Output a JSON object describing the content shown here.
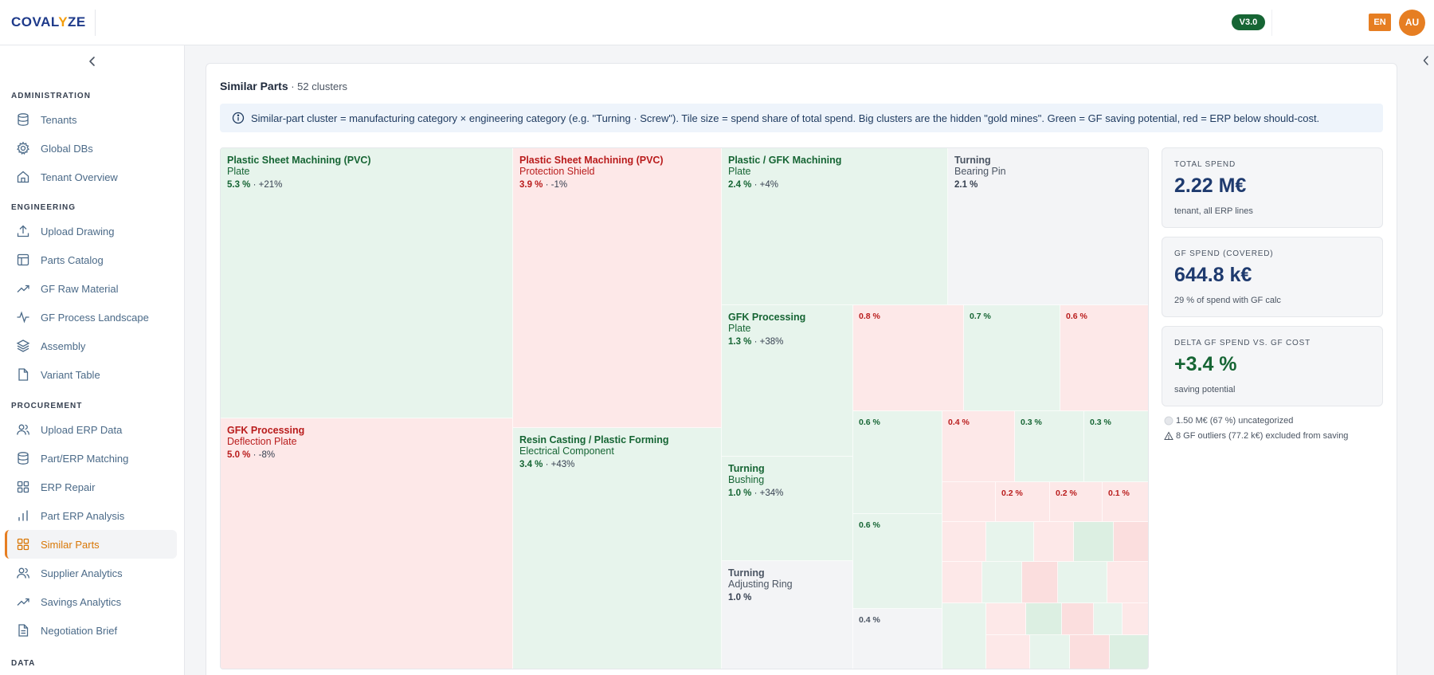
{
  "header": {
    "logo_pre": "COVAL",
    "logo_accent": "Y",
    "logo_post": "ZE",
    "version": "V3.0",
    "language": "EN",
    "avatar": "AU"
  },
  "sidebar": {
    "sections": [
      {
        "title": "ADMINISTRATION",
        "items": [
          {
            "label": "Tenants",
            "icon": "database-icon"
          },
          {
            "label": "Global DBs",
            "icon": "gear-icon"
          },
          {
            "label": "Tenant Overview",
            "icon": "home-icon"
          }
        ]
      },
      {
        "title": "ENGINEERING",
        "items": [
          {
            "label": "Upload Drawing",
            "icon": "upload-icon"
          },
          {
            "label": "Parts Catalog",
            "icon": "table-icon"
          },
          {
            "label": "GF Raw Material",
            "icon": "trend-icon"
          },
          {
            "label": "GF Process Landscape",
            "icon": "activity-icon"
          },
          {
            "label": "Assembly",
            "icon": "layers-icon"
          },
          {
            "label": "Variant Table",
            "icon": "file-icon"
          }
        ]
      },
      {
        "title": "PROCUREMENT",
        "items": [
          {
            "label": "Upload ERP Data",
            "icon": "users-icon"
          },
          {
            "label": "Part/ERP Matching",
            "icon": "database-icon"
          },
          {
            "label": "ERP Repair",
            "icon": "grid-icon"
          },
          {
            "label": "Part ERP Analysis",
            "icon": "bar-chart-icon"
          },
          {
            "label": "Similar Parts",
            "icon": "grid-icon"
          },
          {
            "label": "Supplier Analytics",
            "icon": "users-icon"
          },
          {
            "label": "Savings Analytics",
            "icon": "trend-icon"
          },
          {
            "label": "Negotiation Brief",
            "icon": "file-text-icon"
          }
        ]
      },
      {
        "title": "DATA",
        "items": []
      }
    ]
  },
  "main": {
    "title": "Similar Parts",
    "subtitle": " · 52 clusters",
    "info": "Similar-part cluster = manufacturing category × engineering category (e.g. \"Turning · Screw\"). Tile size = spend share of total spend. Big clusters are the hidden \"gold mines\". Green = GF saving potential, red = ERP below should-cost."
  },
  "treemap": {
    "tiles": [
      {
        "category": "Plastic Sheet Machining (PVC)",
        "sub": "Plate",
        "share": "5.3 %",
        "delta": " · +21%",
        "tone": "green"
      },
      {
        "category": "Plastic Sheet Machining (PVC)",
        "sub": "Protection Shield",
        "share": "3.9 %",
        "delta": " · -1%",
        "tone": "red"
      },
      {
        "category": "Plastic / GFK Machining",
        "sub": "Plate",
        "share": "2.4 %",
        "delta": " · +4%",
        "tone": "green"
      },
      {
        "category": "Turning",
        "sub": "Bearing Pin",
        "share": "2.1 %",
        "delta": "",
        "tone": "gray"
      },
      {
        "category": "GFK Processing",
        "sub": "Plate",
        "share": "1.3 %",
        "delta": " · +38%",
        "tone": "green"
      },
      {
        "category": "GFK Processing",
        "sub": "Deflection Plate",
        "share": "5.0 %",
        "delta": " · -8%",
        "tone": "red"
      },
      {
        "category": "Resin Casting / Plastic Forming",
        "sub": "Electrical Component",
        "share": "3.4 %",
        "delta": " · +43%",
        "tone": "green"
      },
      {
        "category": "Turning",
        "sub": "Bushing",
        "share": "1.0 %",
        "delta": " · +34%",
        "tone": "green"
      },
      {
        "category": "Turning",
        "sub": "Adjusting Ring",
        "share": "1.0 %",
        "delta": "",
        "tone": "gray"
      }
    ],
    "small_tiles": [
      {
        "value": "0.8 %",
        "tone": "red"
      },
      {
        "value": "0.7 %",
        "tone": "green"
      },
      {
        "value": "0.6 %",
        "tone": "red"
      },
      {
        "value": "0.6 %",
        "tone": "green"
      },
      {
        "value": "0.4 %",
        "tone": "red"
      },
      {
        "value": "0.3 %",
        "tone": "green"
      },
      {
        "value": "0.3 %",
        "tone": "green"
      },
      {
        "value": "0.2 %",
        "tone": "red"
      },
      {
        "value": "0.2 %",
        "tone": "red"
      },
      {
        "value": "0.1 %",
        "tone": "red"
      },
      {
        "value": "0.6 %",
        "tone": "green"
      },
      {
        "value": "0.4 %",
        "tone": "gray"
      }
    ],
    "colors": {
      "green": "#e7f4ec",
      "red": "#fde8e8",
      "gray": "#f3f4f6"
    }
  },
  "kpis": [
    {
      "label": "TOTAL SPEND",
      "value": "2.22 M€",
      "note": "tenant, all ERP lines",
      "tone": "navy"
    },
    {
      "label": "GF SPEND (COVERED)",
      "value": "644.8 k€",
      "note": "29 % of spend with GF calc",
      "tone": "navy"
    },
    {
      "label": "DELTA GF SPEND VS. GF COST",
      "value": "+3.4 %",
      "note": "saving potential",
      "tone": "green"
    }
  ],
  "footnotes": [
    {
      "text": "1.50 M€ (67 %) uncategorized",
      "icon": "circle-icon"
    },
    {
      "text": "8 GF outliers (77.2 k€) excluded from saving",
      "icon": "warning-icon"
    }
  ]
}
